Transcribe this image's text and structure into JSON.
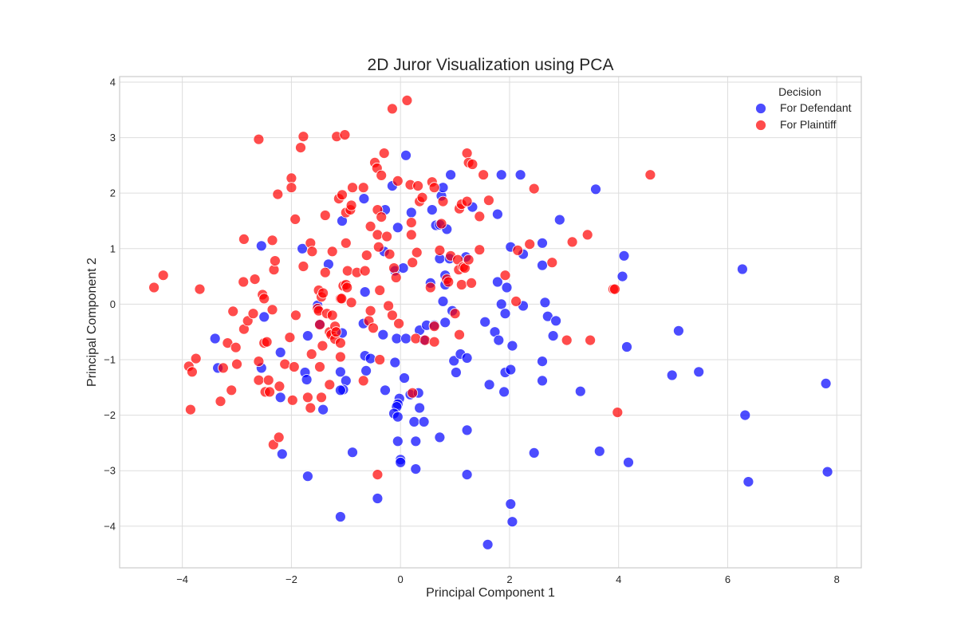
{
  "chart_data": {
    "type": "scatter",
    "title": "2D Juror Visualization using PCA",
    "xlabel": "Principal Component 1",
    "ylabel": "Principal Component 2",
    "xlim": [
      -5.15,
      8.45
    ],
    "ylim": [
      -4.75,
      4.1
    ],
    "xticks": [
      -4,
      -2,
      0,
      2,
      4,
      6,
      8
    ],
    "yticks": [
      -4,
      -3,
      -2,
      -1,
      0,
      1,
      2,
      3,
      4
    ],
    "grid": true,
    "legend": {
      "title": "Decision",
      "placement": "top-right"
    },
    "series": [
      {
        "name": "For Defendant",
        "color": "#0000ff",
        "points": [
          [
            -2.55,
            1.05
          ],
          [
            -3.4,
            -0.62
          ],
          [
            -3.35,
            -1.15
          ],
          [
            -2.55,
            -1.15
          ],
          [
            -2.5,
            -0.23
          ],
          [
            -2.2,
            -0.87
          ],
          [
            -2.2,
            -1.68
          ],
          [
            -2.17,
            -2.7
          ],
          [
            -1.8,
            1.0
          ],
          [
            -1.7,
            -0.57
          ],
          [
            -1.75,
            -1.23
          ],
          [
            -1.72,
            -1.36
          ],
          [
            -1.7,
            -3.1
          ],
          [
            -1.32,
            0.72
          ],
          [
            -1.52,
            -0.02
          ],
          [
            -1.48,
            -0.36
          ],
          [
            -1.42,
            -1.9
          ],
          [
            -1.07,
            1.5
          ],
          [
            -1.07,
            -0.52
          ],
          [
            -1.1,
            -1.22
          ],
          [
            -1.0,
            -1.38
          ],
          [
            -1.05,
            -1.54
          ],
          [
            -1.1,
            -1.55
          ],
          [
            -1.1,
            -3.83
          ],
          [
            -0.88,
            -2.67
          ],
          [
            -0.67,
            1.9
          ],
          [
            -0.65,
            0.22
          ],
          [
            -0.68,
            -0.35
          ],
          [
            -0.65,
            -0.93
          ],
          [
            -0.63,
            -1.2
          ],
          [
            -0.55,
            -0.98
          ],
          [
            -0.42,
            -3.5
          ],
          [
            -0.28,
            1.7
          ],
          [
            -0.3,
            0.95
          ],
          [
            -0.32,
            -0.55
          ],
          [
            -0.28,
            -1.55
          ],
          [
            -0.15,
            2.13
          ],
          [
            -0.1,
            0.6
          ],
          [
            -0.05,
            1.38
          ],
          [
            -0.07,
            -0.62
          ],
          [
            -0.1,
            -1.05
          ],
          [
            -0.02,
            -1.7
          ],
          [
            -0.05,
            -1.8
          ],
          [
            -0.07,
            -1.85
          ],
          [
            -0.12,
            -1.97
          ],
          [
            -0.05,
            -2.03
          ],
          [
            -0.05,
            -2.47
          ],
          [
            0.0,
            -2.8
          ],
          [
            0.0,
            -2.85
          ],
          [
            0.1,
            2.68
          ],
          [
            0.07,
            -1.33
          ],
          [
            0.1,
            -0.62
          ],
          [
            0.05,
            0.65
          ],
          [
            0.2,
            1.65
          ],
          [
            0.18,
            -1.63
          ],
          [
            0.25,
            -2.12
          ],
          [
            0.28,
            -2.47
          ],
          [
            0.28,
            -2.97
          ],
          [
            0.33,
            -1.6
          ],
          [
            0.35,
            -1.87
          ],
          [
            0.35,
            -0.47
          ],
          [
            0.43,
            -2.12
          ],
          [
            0.43,
            -0.65
          ],
          [
            0.48,
            -0.38
          ],
          [
            0.55,
            0.38
          ],
          [
            0.58,
            1.7
          ],
          [
            0.62,
            -0.38
          ],
          [
            0.65,
            1.42
          ],
          [
            0.72,
            1.43
          ],
          [
            0.72,
            0.82
          ],
          [
            0.72,
            -2.4
          ],
          [
            0.75,
            1.95
          ],
          [
            0.78,
            2.1
          ],
          [
            0.78,
            0.05
          ],
          [
            0.82,
            0.35
          ],
          [
            0.82,
            0.52
          ],
          [
            0.85,
            1.35
          ],
          [
            0.82,
            -0.33
          ],
          [
            0.92,
            2.33
          ],
          [
            0.9,
            0.82
          ],
          [
            0.95,
            -0.12
          ],
          [
            0.98,
            -1.02
          ],
          [
            1.02,
            -1.23
          ],
          [
            1.1,
            -0.9
          ],
          [
            1.2,
            0.85
          ],
          [
            1.22,
            -0.97
          ],
          [
            1.22,
            -2.27
          ],
          [
            1.22,
            -3.07
          ],
          [
            1.32,
            1.75
          ],
          [
            1.55,
            -0.32
          ],
          [
            1.63,
            -1.45
          ],
          [
            1.73,
            -0.5
          ],
          [
            1.78,
            0.4
          ],
          [
            1.78,
            1.62
          ],
          [
            1.8,
            -0.65
          ],
          [
            1.85,
            0.0
          ],
          [
            1.85,
            2.33
          ],
          [
            1.9,
            -1.58
          ],
          [
            1.92,
            -1.23
          ],
          [
            1.92,
            -0.17
          ],
          [
            1.95,
            0.3
          ],
          [
            2.02,
            1.03
          ],
          [
            2.02,
            -1.18
          ],
          [
            2.05,
            -0.75
          ],
          [
            2.02,
            -3.6
          ],
          [
            2.05,
            -3.92
          ],
          [
            2.2,
            2.33
          ],
          [
            2.25,
            -0.03
          ],
          [
            2.25,
            0.9
          ],
          [
            2.45,
            -2.68
          ],
          [
            2.6,
            -1.03
          ],
          [
            2.6,
            -1.38
          ],
          [
            2.6,
            0.7
          ],
          [
            2.6,
            1.1
          ],
          [
            2.65,
            0.03
          ],
          [
            2.7,
            -0.22
          ],
          [
            2.8,
            -0.57
          ],
          [
            2.85,
            -0.3
          ],
          [
            2.92,
            1.52
          ],
          [
            3.3,
            -1.57
          ],
          [
            3.58,
            2.07
          ],
          [
            3.65,
            -2.65
          ],
          [
            4.07,
            0.5
          ],
          [
            4.1,
            0.87
          ],
          [
            4.15,
            -0.77
          ],
          [
            4.18,
            -2.85
          ],
          [
            4.98,
            -1.28
          ],
          [
            5.1,
            -0.48
          ],
          [
            5.47,
            -1.22
          ],
          [
            6.27,
            0.63
          ],
          [
            6.32,
            -2.0
          ],
          [
            6.38,
            -3.2
          ],
          [
            7.8,
            -1.43
          ],
          [
            7.83,
            -3.02
          ],
          [
            1.6,
            -4.33
          ]
        ]
      },
      {
        "name": "For Plaintiff",
        "color": "#ff0000",
        "points": [
          [
            -4.52,
            0.3
          ],
          [
            -4.35,
            0.52
          ],
          [
            -3.88,
            -1.12
          ],
          [
            -3.85,
            -1.9
          ],
          [
            -3.82,
            -1.22
          ],
          [
            -3.75,
            -0.98
          ],
          [
            -3.68,
            0.27
          ],
          [
            -3.3,
            -1.75
          ],
          [
            -3.25,
            -1.15
          ],
          [
            -3.17,
            -0.7
          ],
          [
            -3.1,
            -1.55
          ],
          [
            -3.07,
            -0.13
          ],
          [
            -3.02,
            -0.78
          ],
          [
            -3.0,
            -1.08
          ],
          [
            -2.88,
            0.4
          ],
          [
            -2.87,
            1.17
          ],
          [
            -2.87,
            -0.45
          ],
          [
            -2.8,
            -0.3
          ],
          [
            -2.7,
            -0.17
          ],
          [
            -2.67,
            0.45
          ],
          [
            -2.6,
            2.97
          ],
          [
            -2.6,
            -1.03
          ],
          [
            -2.6,
            -1.37
          ],
          [
            -2.53,
            0.17
          ],
          [
            -2.5,
            0.1
          ],
          [
            -2.5,
            -0.7
          ],
          [
            -2.48,
            -1.58
          ],
          [
            -2.45,
            -0.68
          ],
          [
            -2.42,
            -1.37
          ],
          [
            -2.4,
            -1.58
          ],
          [
            -2.35,
            -0.1
          ],
          [
            -2.35,
            1.15
          ],
          [
            -2.32,
            0.62
          ],
          [
            -2.3,
            0.78
          ],
          [
            -2.33,
            -2.53
          ],
          [
            -2.25,
            1.98
          ],
          [
            -2.23,
            -2.4
          ],
          [
            -2.22,
            -1.48
          ],
          [
            -2.12,
            -1.08
          ],
          [
            -2.0,
            2.27
          ],
          [
            -2.03,
            -0.6
          ],
          [
            -2.0,
            2.1
          ],
          [
            -1.98,
            -1.73
          ],
          [
            -1.95,
            -1.13
          ],
          [
            -1.93,
            1.53
          ],
          [
            -1.92,
            -0.2
          ],
          [
            -1.83,
            2.82
          ],
          [
            -1.78,
            3.02
          ],
          [
            -1.78,
            0.68
          ],
          [
            -1.7,
            -1.68
          ],
          [
            -1.65,
            1.1
          ],
          [
            -1.65,
            -1.87
          ],
          [
            -1.63,
            -0.9
          ],
          [
            -1.62,
            0.95
          ],
          [
            -1.52,
            -0.08
          ],
          [
            -1.5,
            0.25
          ],
          [
            -1.5,
            -0.12
          ],
          [
            -1.48,
            -0.37
          ],
          [
            -1.48,
            -1.13
          ],
          [
            -1.45,
            -1.68
          ],
          [
            -1.45,
            0.13
          ],
          [
            -1.43,
            -0.75
          ],
          [
            -1.42,
            0.2
          ],
          [
            -1.38,
            1.6
          ],
          [
            -1.38,
            0.57
          ],
          [
            -1.35,
            -0.17
          ],
          [
            -1.3,
            -0.5
          ],
          [
            -1.3,
            -1.45
          ],
          [
            -1.25,
            0.95
          ],
          [
            -1.27,
            -0.55
          ],
          [
            -1.25,
            -0.2
          ],
          [
            -1.2,
            -0.63
          ],
          [
            -1.2,
            -0.4
          ],
          [
            -1.18,
            -0.5
          ],
          [
            -1.17,
            3.02
          ],
          [
            -1.13,
            1.9
          ],
          [
            -1.1,
            -0.7
          ],
          [
            -1.1,
            -0.95
          ],
          [
            -1.1,
            0.1
          ],
          [
            -1.07,
            1.97
          ],
          [
            -1.08,
            0.1
          ],
          [
            -1.05,
            0.33
          ],
          [
            -1.02,
            3.05
          ],
          [
            -1.0,
            1.65
          ],
          [
            -1.0,
            1.1
          ],
          [
            -1.0,
            0.35
          ],
          [
            -0.98,
            0.3
          ],
          [
            -0.97,
            0.6
          ],
          [
            -0.92,
            1.7
          ],
          [
            -0.9,
            1.78
          ],
          [
            -0.9,
            0.03
          ],
          [
            -0.88,
            2.1
          ],
          [
            -0.8,
            0.57
          ],
          [
            -0.68,
            2.1
          ],
          [
            -0.68,
            -1.38
          ],
          [
            -0.65,
            0.6
          ],
          [
            -0.62,
            0.88
          ],
          [
            -0.58,
            -0.3
          ],
          [
            -0.55,
            1.4
          ],
          [
            -0.55,
            -0.12
          ],
          [
            -0.5,
            -0.43
          ],
          [
            -0.47,
            2.55
          ],
          [
            -0.43,
            2.45
          ],
          [
            -0.42,
            1.7
          ],
          [
            -0.42,
            1.25
          ],
          [
            -0.42,
            -3.07
          ],
          [
            -0.4,
            1.03
          ],
          [
            -0.38,
            0.25
          ],
          [
            -0.38,
            -1.0
          ],
          [
            -0.35,
            2.32
          ],
          [
            -0.35,
            1.57
          ],
          [
            -0.3,
            2.72
          ],
          [
            -0.25,
            1.22
          ],
          [
            -0.22,
            -0.03
          ],
          [
            -0.2,
            0.9
          ],
          [
            -0.15,
            -0.2
          ],
          [
            -0.15,
            3.52
          ],
          [
            -0.12,
            0.65
          ],
          [
            -0.08,
            0.48
          ],
          [
            -0.05,
            2.22
          ],
          [
            -0.03,
            -0.35
          ],
          [
            0.12,
            3.67
          ],
          [
            0.18,
            2.15
          ],
          [
            0.2,
            1.47
          ],
          [
            0.2,
            1.25
          ],
          [
            0.22,
            0.75
          ],
          [
            0.22,
            -1.6
          ],
          [
            0.28,
            -0.62
          ],
          [
            0.3,
            0.93
          ],
          [
            0.32,
            2.13
          ],
          [
            0.35,
            1.85
          ],
          [
            0.4,
            1.92
          ],
          [
            0.45,
            -0.65
          ],
          [
            0.55,
            0.3
          ],
          [
            0.58,
            2.2
          ],
          [
            0.62,
            2.1
          ],
          [
            0.62,
            -0.4
          ],
          [
            0.62,
            -0.68
          ],
          [
            0.72,
            0.97
          ],
          [
            0.75,
            1.45
          ],
          [
            0.78,
            1.85
          ],
          [
            0.85,
            0.45
          ],
          [
            0.88,
            0.4
          ],
          [
            0.92,
            0.87
          ],
          [
            1.0,
            -0.17
          ],
          [
            1.05,
            0.8
          ],
          [
            1.07,
            0.62
          ],
          [
            1.08,
            -0.55
          ],
          [
            1.08,
            1.72
          ],
          [
            1.12,
            1.8
          ],
          [
            1.12,
            0.35
          ],
          [
            1.15,
            0.67
          ],
          [
            1.18,
            0.65
          ],
          [
            1.22,
            2.72
          ],
          [
            1.22,
            1.85
          ],
          [
            1.25,
            0.8
          ],
          [
            1.25,
            2.55
          ],
          [
            1.3,
            0.38
          ],
          [
            1.32,
            2.52
          ],
          [
            1.45,
            0.98
          ],
          [
            1.45,
            1.58
          ],
          [
            1.52,
            2.33
          ],
          [
            1.62,
            1.87
          ],
          [
            1.92,
            0.52
          ],
          [
            2.12,
            0.05
          ],
          [
            2.15,
            0.97
          ],
          [
            2.37,
            1.08
          ],
          [
            2.45,
            2.08
          ],
          [
            2.78,
            0.75
          ],
          [
            3.05,
            -0.65
          ],
          [
            3.15,
            1.12
          ],
          [
            3.43,
            1.25
          ],
          [
            3.48,
            -0.65
          ],
          [
            3.9,
            0.27
          ],
          [
            3.93,
            0.27
          ],
          [
            3.98,
            -1.95
          ],
          [
            4.58,
            2.33
          ]
        ]
      }
    ]
  }
}
